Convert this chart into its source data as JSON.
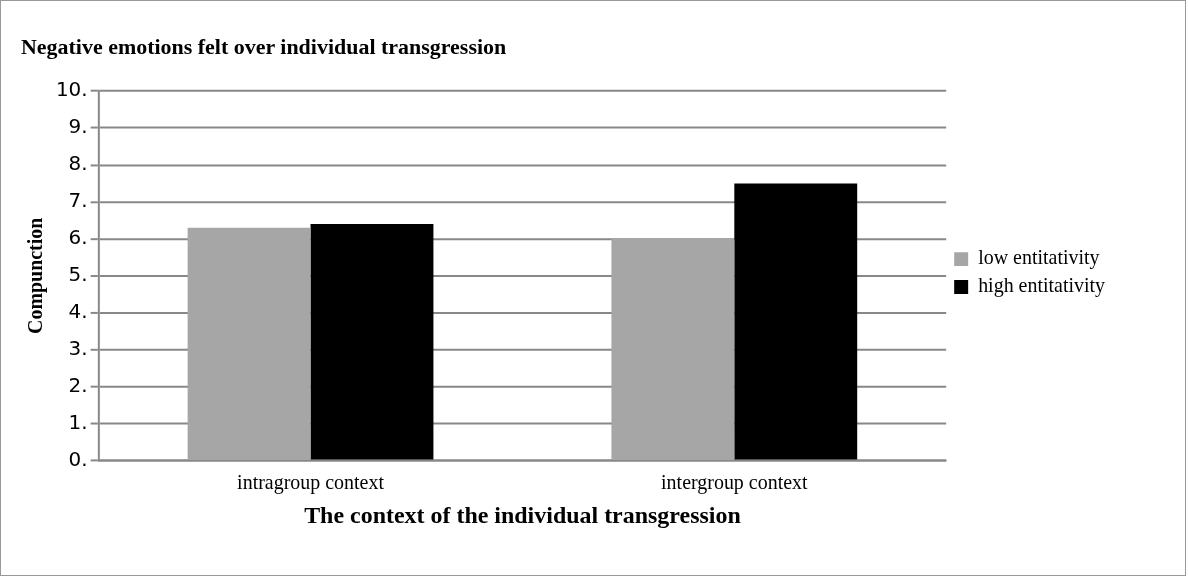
{
  "chart_data": {
    "type": "bar",
    "title": "Negative emotions felt over individual transgression",
    "xlabel": "The context of the individual transgression",
    "ylabel": "Compunction",
    "categories": [
      "intragroup context",
      "intergroup context"
    ],
    "series": [
      {
        "name": "low entitativity",
        "color": "#a6a6a6",
        "values": [
          6.3,
          6.0
        ]
      },
      {
        "name": "high entitativity",
        "color": "#000000",
        "values": [
          6.4,
          7.5
        ]
      }
    ],
    "ylim": [
      0,
      10
    ],
    "yticks": [
      {
        "value": 0,
        "label": "0."
      },
      {
        "value": 1,
        "label": "1."
      },
      {
        "value": 2,
        "label": "2."
      },
      {
        "value": 3,
        "label": "3."
      },
      {
        "value": 4,
        "label": "4."
      },
      {
        "value": 5,
        "label": "5."
      },
      {
        "value": 6,
        "label": "6."
      },
      {
        "value": 7,
        "label": "7."
      },
      {
        "value": 8,
        "label": "8."
      },
      {
        "value": 9,
        "label": "9."
      },
      {
        "value": 10,
        "label": "10."
      }
    ],
    "grid": "y",
    "legend": "right"
  }
}
